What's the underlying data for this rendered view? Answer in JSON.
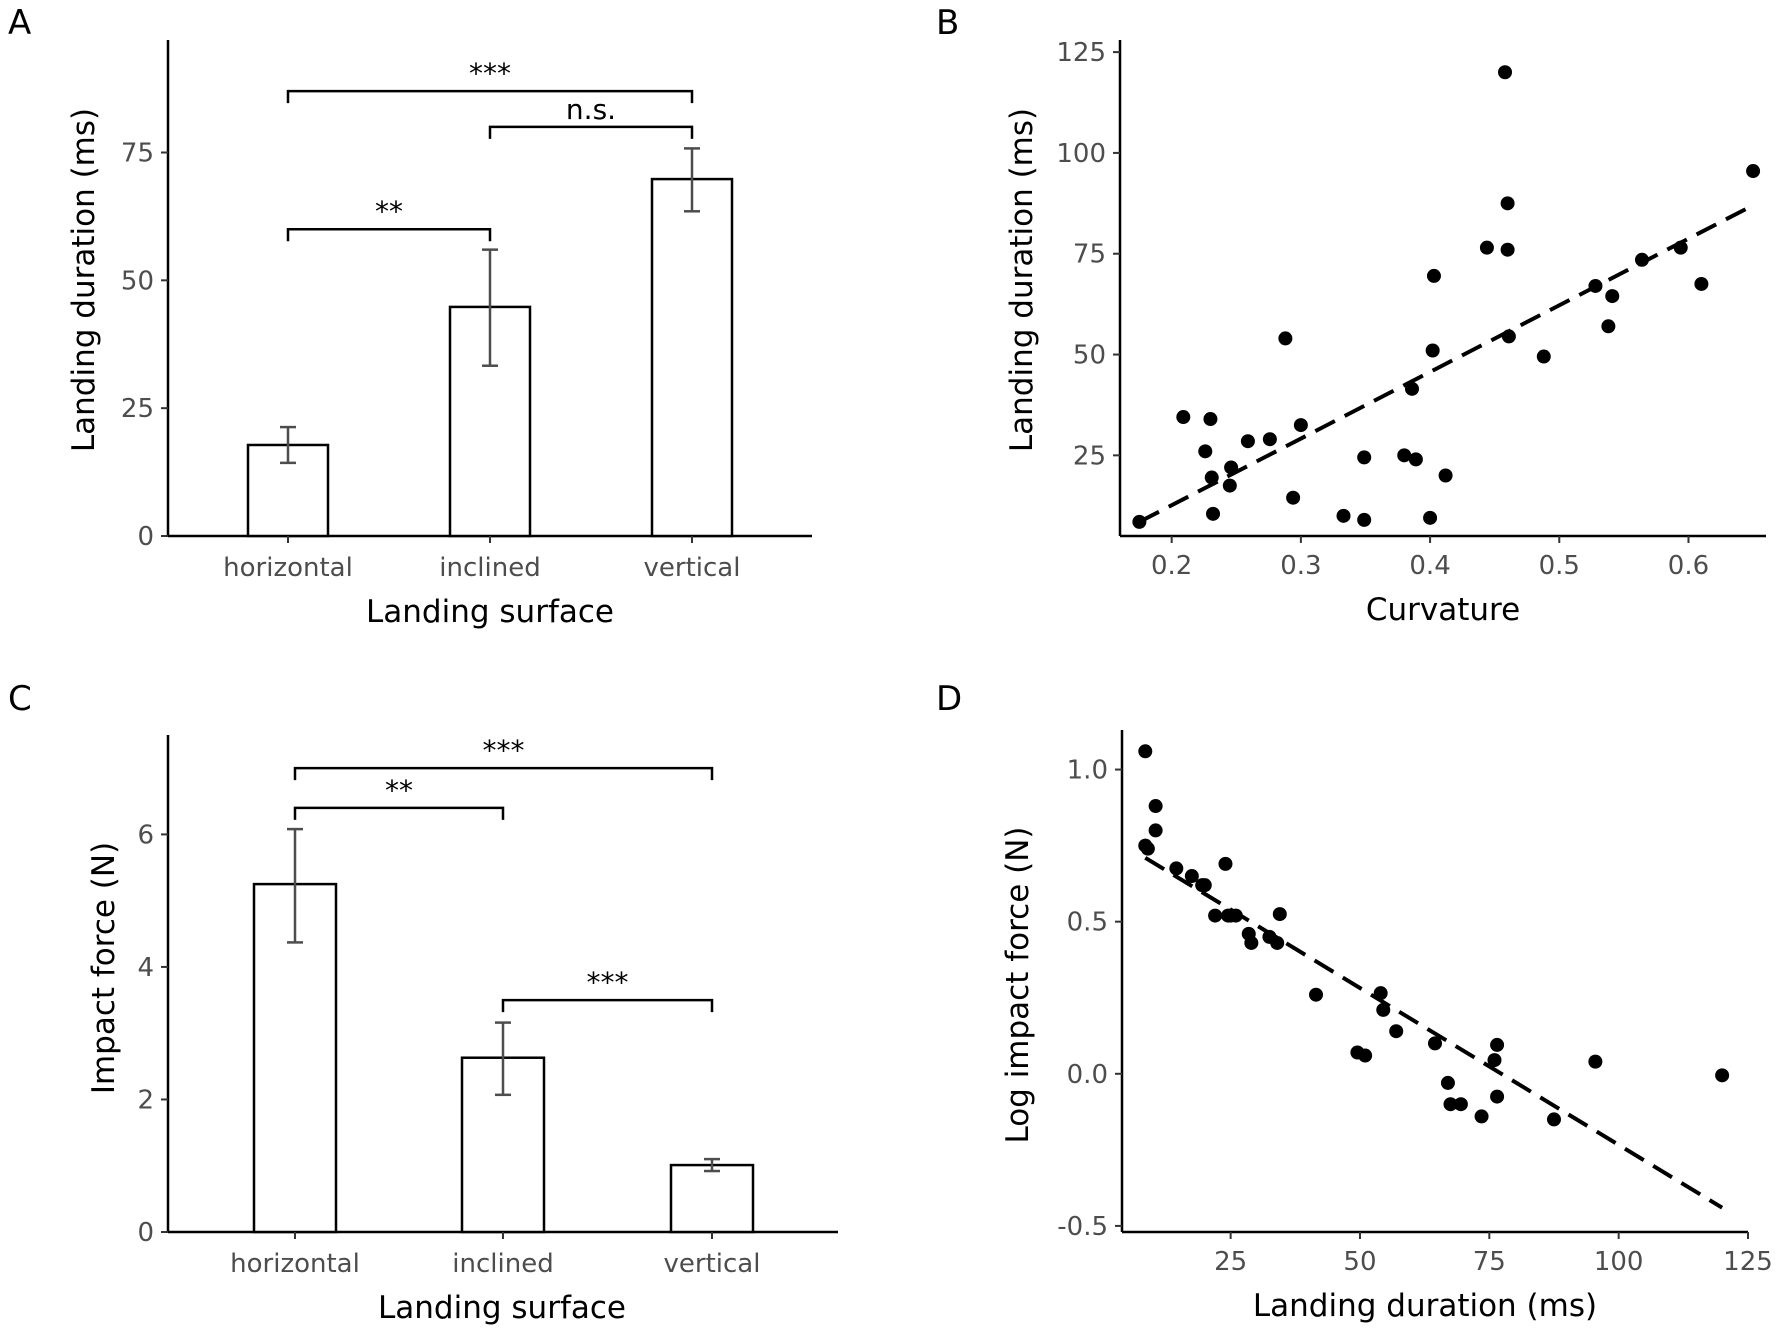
{
  "chart_data": [
    {
      "panel": "A",
      "type": "bar",
      "categories": [
        "horizontal",
        "inclined",
        "vertical"
      ],
      "values": [
        17.8,
        44.8,
        69.8
      ],
      "error_low": [
        14.3,
        33.3,
        63.5
      ],
      "error_high": [
        21.3,
        56.0,
        75.8
      ],
      "xlabel": "Landing surface",
      "ylabel": "Landing duration (ms)",
      "ylim": [
        0,
        97
      ],
      "yticks": [
        0,
        25,
        50,
        75
      ],
      "yticklabels": [
        "0",
        "25",
        "50",
        "75"
      ],
      "significance": [
        {
          "from": 0,
          "to": 2,
          "y": 87,
          "label": "***"
        },
        {
          "from": 1,
          "to": 2,
          "y": 80,
          "label": "n.s."
        },
        {
          "from": 0,
          "to": 1,
          "y": 60,
          "label": "**"
        }
      ]
    },
    {
      "panel": "B",
      "type": "scatter",
      "xlabel": "Curvature",
      "ylabel": "Landing duration (ms)",
      "xlim": [
        0.16,
        0.66
      ],
      "ylim": [
        5,
        128
      ],
      "xticks": [
        0.2,
        0.3,
        0.4,
        0.5,
        0.6
      ],
      "xticklabels": [
        "0.2",
        "0.3",
        "0.4",
        "0.5",
        "0.6"
      ],
      "yticks": [
        25,
        50,
        75,
        100,
        125
      ],
      "yticklabels": [
        "25",
        "50",
        "75",
        "100",
        "125"
      ],
      "points": [
        [
          0.175,
          8.5
        ],
        [
          0.209,
          34.5
        ],
        [
          0.226,
          26
        ],
        [
          0.23,
          34
        ],
        [
          0.231,
          19.5
        ],
        [
          0.232,
          10.5
        ],
        [
          0.245,
          17.5
        ],
        [
          0.246,
          22
        ],
        [
          0.259,
          28.5
        ],
        [
          0.276,
          29
        ],
        [
          0.288,
          54
        ],
        [
          0.294,
          14.5
        ],
        [
          0.3,
          32.5
        ],
        [
          0.333,
          10
        ],
        [
          0.349,
          9
        ],
        [
          0.349,
          24.5
        ],
        [
          0.38,
          25
        ],
        [
          0.386,
          41.5
        ],
        [
          0.389,
          24
        ],
        [
          0.4,
          9.5
        ],
        [
          0.402,
          51
        ],
        [
          0.403,
          69.5
        ],
        [
          0.412,
          20
        ],
        [
          0.444,
          76.5
        ],
        [
          0.458,
          120
        ],
        [
          0.46,
          87.5
        ],
        [
          0.46,
          76
        ],
        [
          0.461,
          54.5
        ],
        [
          0.488,
          49.5
        ],
        [
          0.528,
          67
        ],
        [
          0.538,
          57
        ],
        [
          0.541,
          64.5
        ],
        [
          0.564,
          73.5
        ],
        [
          0.594,
          76.5
        ],
        [
          0.61,
          67.5
        ],
        [
          0.65,
          95.5
        ]
      ],
      "trend": {
        "x": [
          0.175,
          0.65
        ],
        "y": [
          8.5,
          87
        ]
      }
    },
    {
      "panel": "C",
      "type": "bar",
      "categories": [
        "horizontal",
        "inclined",
        "vertical"
      ],
      "values": [
        5.25,
        2.63,
        1.01
      ],
      "error_low": [
        4.37,
        2.07,
        0.92
      ],
      "error_high": [
        6.08,
        3.16,
        1.1
      ],
      "xlabel": "Landing surface",
      "ylabel": "Impact force (N)",
      "ylim": [
        0,
        7.5
      ],
      "yticks": [
        0,
        2,
        4,
        6
      ],
      "yticklabels": [
        "0",
        "2",
        "4",
        "6"
      ],
      "significance": [
        {
          "from": 0,
          "to": 2,
          "y": 7.0,
          "label": "***"
        },
        {
          "from": 0,
          "to": 1,
          "y": 6.4,
          "label": "**"
        },
        {
          "from": 1,
          "to": 2,
          "y": 3.5,
          "label": "***"
        }
      ]
    },
    {
      "panel": "D",
      "type": "scatter",
      "xlabel": "Landing duration (ms)",
      "ylabel": "Log impact force (N)",
      "xlim": [
        4,
        125
      ],
      "ylim": [
        -0.52,
        1.13
      ],
      "xticks": [
        25,
        50,
        75,
        100,
        125
      ],
      "xticklabels": [
        "25",
        "50",
        "75",
        "100",
        "125"
      ],
      "yticks": [
        -0.5,
        0,
        0.5,
        1
      ],
      "yticklabels": [
        "-0.5",
        "0.0",
        "0.5",
        "1.0"
      ],
      "points": [
        [
          8.5,
          1.06
        ],
        [
          8.5,
          0.75
        ],
        [
          9,
          0.74
        ],
        [
          10.5,
          0.88
        ],
        [
          10.5,
          0.8
        ],
        [
          14.5,
          0.675
        ],
        [
          17.5,
          0.65
        ],
        [
          19.5,
          0.62
        ],
        [
          20,
          0.62
        ],
        [
          22,
          0.52
        ],
        [
          24,
          0.69
        ],
        [
          24.5,
          0.52
        ],
        [
          25,
          0.52
        ],
        [
          26,
          0.52
        ],
        [
          28.5,
          0.46
        ],
        [
          29,
          0.43
        ],
        [
          32.5,
          0.45
        ],
        [
          34,
          0.43
        ],
        [
          34.5,
          0.525
        ],
        [
          41.5,
          0.26
        ],
        [
          49.5,
          0.07
        ],
        [
          51,
          0.06
        ],
        [
          54,
          0.265
        ],
        [
          54.5,
          0.21
        ],
        [
          57,
          0.14
        ],
        [
          64.5,
          0.1
        ],
        [
          67,
          -0.03
        ],
        [
          67.5,
          -0.1
        ],
        [
          69.5,
          -0.1
        ],
        [
          73.5,
          -0.14
        ],
        [
          76,
          0.045
        ],
        [
          76.5,
          0.095
        ],
        [
          76.5,
          -0.075
        ],
        [
          87.5,
          -0.15
        ],
        [
          95.5,
          0.04
        ],
        [
          120,
          -0.005
        ]
      ],
      "trend": {
        "x": [
          8.5,
          120
        ],
        "y": [
          0.71,
          -0.44
        ]
      }
    }
  ]
}
